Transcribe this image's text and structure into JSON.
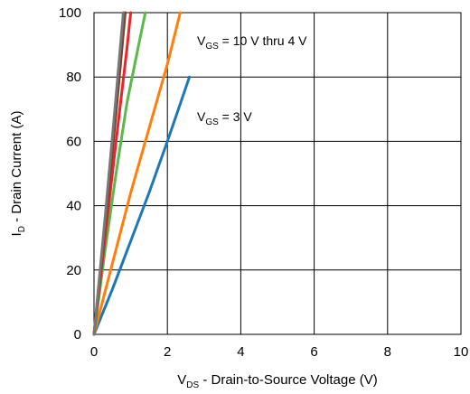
{
  "chart_data": {
    "type": "line",
    "xlabel_main": "V",
    "xlabel_sub": "DS",
    "xlabel_rest": " - Drain-to-Source Voltage (V)",
    "ylabel_main": "I",
    "ylabel_sub": "D",
    "ylabel_rest": " - Drain Current (A)",
    "xlim": [
      0,
      10
    ],
    "ylim": [
      0,
      100
    ],
    "xticks": [
      0,
      2,
      4,
      6,
      8,
      10
    ],
    "yticks": [
      0,
      20,
      40,
      60,
      80,
      100
    ],
    "grid": true,
    "annotations": [
      {
        "main": "V",
        "sub": "GS",
        "rest": " = 10 V thru 4 V"
      },
      {
        "main": "V",
        "sub": "GS",
        "rest": " = 3 V"
      }
    ],
    "series": [
      {
        "color": "#1f77b4",
        "x": [
          0,
          0.5,
          1.0,
          1.5,
          2.0,
          2.3,
          2.6
        ],
        "y": [
          0,
          14,
          29,
          44,
          60,
          70,
          80
        ]
      },
      {
        "color": "#ff7f0e",
        "x": [
          0,
          0.5,
          1.0,
          1.5,
          2.0,
          2.35
        ],
        "y": [
          0,
          22,
          44,
          64,
          84,
          100
        ]
      },
      {
        "color": "#5ab94a",
        "x": [
          0,
          0.3,
          0.6,
          0.9,
          1.2,
          1.4
        ],
        "y": [
          0,
          26,
          50,
          72,
          89,
          100
        ]
      },
      {
        "color": "#e8262a",
        "x": [
          0,
          0.3,
          0.6,
          0.9,
          1.0
        ],
        "y": [
          0,
          30,
          60,
          89,
          100
        ]
      },
      {
        "color": "#7b3f26",
        "x": [
          0,
          0.3,
          0.6,
          0.85
        ],
        "y": [
          0,
          34,
          69,
          100
        ]
      },
      {
        "color": "#777777",
        "x": [
          0,
          0.3,
          0.6,
          0.8
        ],
        "y": [
          0,
          36,
          74,
          100
        ]
      }
    ]
  }
}
